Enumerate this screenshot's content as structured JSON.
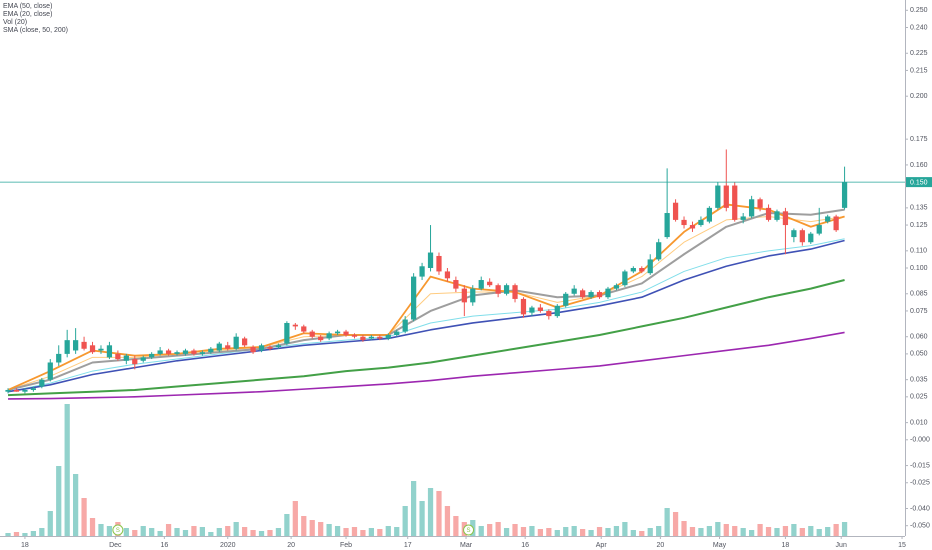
{
  "chart_data": {
    "type": "candlestick",
    "legend": [
      "EMA (50, close)",
      "EMA (20, close)",
      "Vol (20)",
      "SMA (close, 50, 200)"
    ],
    "up_color": "#26a69a",
    "down_color": "#ef5350",
    "ohlc": [
      [
        0.028,
        0.03,
        0.027,
        0.029
      ],
      [
        0.029,
        0.03,
        0.028,
        0.028
      ],
      [
        0.028,
        0.03,
        0.027,
        0.029
      ],
      [
        0.029,
        0.031,
        0.028,
        0.03
      ],
      [
        0.031,
        0.036,
        0.03,
        0.035
      ],
      [
        0.035,
        0.047,
        0.034,
        0.045
      ],
      [
        0.045,
        0.055,
        0.043,
        0.05
      ],
      [
        0.05,
        0.064,
        0.048,
        0.058
      ],
      [
        0.052,
        0.065,
        0.05,
        0.058
      ],
      [
        0.057,
        0.06,
        0.052,
        0.053
      ],
      [
        0.055,
        0.057,
        0.05,
        0.051
      ],
      [
        0.052,
        0.055,
        0.05,
        0.053
      ],
      [
        0.048,
        0.057,
        0.047,
        0.055
      ],
      [
        0.05,
        0.052,
        0.046,
        0.047
      ],
      [
        0.046,
        0.05,
        0.044,
        0.049
      ],
      [
        0.047,
        0.049,
        0.041,
        0.044
      ],
      [
        0.046,
        0.049,
        0.045,
        0.048
      ],
      [
        0.048,
        0.051,
        0.047,
        0.05
      ],
      [
        0.05,
        0.054,
        0.049,
        0.052
      ],
      [
        0.052,
        0.053,
        0.049,
        0.05
      ],
      [
        0.05,
        0.052,
        0.049,
        0.051
      ],
      [
        0.05,
        0.053,
        0.049,
        0.052
      ],
      [
        0.052,
        0.053,
        0.049,
        0.05
      ],
      [
        0.05,
        0.052,
        0.049,
        0.051
      ],
      [
        0.051,
        0.054,
        0.05,
        0.053
      ],
      [
        0.052,
        0.057,
        0.051,
        0.056
      ],
      [
        0.055,
        0.057,
        0.052,
        0.053
      ],
      [
        0.053,
        0.062,
        0.052,
        0.06
      ],
      [
        0.059,
        0.06,
        0.054,
        0.055
      ],
      [
        0.054,
        0.055,
        0.05,
        0.051
      ],
      [
        0.052,
        0.056,
        0.051,
        0.055
      ],
      [
        0.054,
        0.055,
        0.052,
        0.053
      ],
      [
        0.054,
        0.056,
        0.053,
        0.055
      ],
      [
        0.056,
        0.069,
        0.055,
        0.068
      ],
      [
        0.067,
        0.068,
        0.064,
        0.066
      ],
      [
        0.066,
        0.067,
        0.062,
        0.063
      ],
      [
        0.063,
        0.064,
        0.059,
        0.06
      ],
      [
        0.06,
        0.061,
        0.057,
        0.058
      ],
      [
        0.059,
        0.063,
        0.058,
        0.062
      ],
      [
        0.062,
        0.064,
        0.061,
        0.063
      ],
      [
        0.063,
        0.064,
        0.06,
        0.061
      ],
      [
        0.061,
        0.062,
        0.059,
        0.06
      ],
      [
        0.06,
        0.061,
        0.057,
        0.058
      ],
      [
        0.059,
        0.061,
        0.058,
        0.06
      ],
      [
        0.06,
        0.061,
        0.058,
        0.059
      ],
      [
        0.059,
        0.062,
        0.058,
        0.061
      ],
      [
        0.061,
        0.064,
        0.06,
        0.063
      ],
      [
        0.063,
        0.072,
        0.062,
        0.07
      ],
      [
        0.07,
        0.097,
        0.069,
        0.095
      ],
      [
        0.095,
        0.103,
        0.093,
        0.101
      ],
      [
        0.1,
        0.125,
        0.098,
        0.109
      ],
      [
        0.107,
        0.109,
        0.096,
        0.098
      ],
      [
        0.098,
        0.1,
        0.092,
        0.094
      ],
      [
        0.093,
        0.095,
        0.086,
        0.088
      ],
      [
        0.088,
        0.09,
        0.072,
        0.08
      ],
      [
        0.08,
        0.09,
        0.078,
        0.088
      ],
      [
        0.088,
        0.095,
        0.087,
        0.093
      ],
      [
        0.092,
        0.094,
        0.089,
        0.09
      ],
      [
        0.09,
        0.091,
        0.083,
        0.085
      ],
      [
        0.085,
        0.091,
        0.084,
        0.09
      ],
      [
        0.09,
        0.091,
        0.08,
        0.082
      ],
      [
        0.082,
        0.083,
        0.071,
        0.073
      ],
      [
        0.074,
        0.078,
        0.072,
        0.077
      ],
      [
        0.077,
        0.079,
        0.074,
        0.075
      ],
      [
        0.075,
        0.076,
        0.07,
        0.072
      ],
      [
        0.072,
        0.079,
        0.071,
        0.078
      ],
      [
        0.078,
        0.086,
        0.077,
        0.085
      ],
      [
        0.085,
        0.09,
        0.084,
        0.088
      ],
      [
        0.087,
        0.088,
        0.082,
        0.083
      ],
      [
        0.083,
        0.087,
        0.082,
        0.086
      ],
      [
        0.086,
        0.087,
        0.082,
        0.083
      ],
      [
        0.083,
        0.089,
        0.082,
        0.088
      ],
      [
        0.088,
        0.091,
        0.087,
        0.09
      ],
      [
        0.09,
        0.099,
        0.089,
        0.098
      ],
      [
        0.098,
        0.101,
        0.097,
        0.1
      ],
      [
        0.1,
        0.101,
        0.097,
        0.098
      ],
      [
        0.097,
        0.108,
        0.096,
        0.105
      ],
      [
        0.105,
        0.117,
        0.104,
        0.115
      ],
      [
        0.118,
        0.158,
        0.117,
        0.132
      ],
      [
        0.138,
        0.14,
        0.127,
        0.128
      ],
      [
        0.128,
        0.13,
        0.123,
        0.125
      ],
      [
        0.125,
        0.127,
        0.121,
        0.123
      ],
      [
        0.125,
        0.13,
        0.124,
        0.128
      ],
      [
        0.127,
        0.136,
        0.126,
        0.135
      ],
      [
        0.135,
        0.15,
        0.134,
        0.148
      ],
      [
        0.148,
        0.169,
        0.133,
        0.135
      ],
      [
        0.148,
        0.15,
        0.127,
        0.128
      ],
      [
        0.128,
        0.132,
        0.126,
        0.13
      ],
      [
        0.13,
        0.142,
        0.129,
        0.14
      ],
      [
        0.14,
        0.141,
        0.133,
        0.135
      ],
      [
        0.135,
        0.137,
        0.127,
        0.128
      ],
      [
        0.128,
        0.134,
        0.127,
        0.133
      ],
      [
        0.133,
        0.135,
        0.108,
        0.125
      ],
      [
        0.118,
        0.123,
        0.115,
        0.122
      ],
      [
        0.122,
        0.123,
        0.113,
        0.115
      ],
      [
        0.115,
        0.121,
        0.114,
        0.12
      ],
      [
        0.12,
        0.135,
        0.119,
        0.125
      ],
      [
        0.127,
        0.131,
        0.126,
        0.13
      ],
      [
        0.13,
        0.131,
        0.121,
        0.122
      ],
      [
        0.135,
        0.159,
        0.134,
        0.15
      ]
    ],
    "volume": [
      3,
      4,
      3,
      5,
      8,
      25,
      70,
      132,
      62,
      38,
      18,
      12,
      10,
      14,
      8,
      6,
      10,
      8,
      5,
      12,
      8,
      6,
      10,
      9,
      4,
      8,
      10,
      14,
      9,
      6,
      5,
      6,
      8,
      22,
      35,
      20,
      16,
      14,
      12,
      10,
      8,
      9,
      6,
      8,
      7,
      10,
      9,
      30,
      55,
      35,
      48,
      45,
      30,
      20,
      14,
      16,
      10,
      12,
      14,
      8,
      12,
      9,
      10,
      7,
      8,
      6,
      9,
      10,
      7,
      6,
      9,
      8,
      10,
      14,
      6,
      5,
      8,
      10,
      28,
      24,
      15,
      9,
      8,
      10,
      14,
      12,
      10,
      8,
      6,
      12,
      9,
      8,
      10,
      12,
      8,
      10,
      7,
      9,
      12,
      14
    ],
    "volume_lim": [
      0,
      140
    ],
    "line_x": [
      0,
      5,
      10,
      15,
      20,
      25,
      30,
      35,
      40,
      45,
      50,
      55,
      60,
      65,
      70,
      75,
      80,
      85,
      90,
      95,
      99
    ],
    "lines": [
      {
        "color": "#9c27b0",
        "width": 1.6,
        "values": [
          0.0238,
          0.024,
          0.0245,
          0.025,
          0.026,
          0.027,
          0.028,
          0.0295,
          0.031,
          0.0325,
          0.0345,
          0.037,
          0.039,
          0.041,
          0.043,
          0.046,
          0.049,
          0.052,
          0.055,
          0.059,
          0.0625
        ]
      },
      {
        "color": "#43a047",
        "width": 2,
        "values": [
          0.026,
          0.027,
          0.028,
          0.029,
          0.031,
          0.033,
          0.035,
          0.037,
          0.04,
          0.042,
          0.045,
          0.049,
          0.053,
          0.057,
          0.061,
          0.066,
          0.071,
          0.077,
          0.083,
          0.088,
          0.093
        ]
      },
      {
        "color": "#80deea",
        "width": 1,
        "values": [
          0.028,
          0.033,
          0.04,
          0.044,
          0.047,
          0.05,
          0.053,
          0.056,
          0.058,
          0.06,
          0.068,
          0.072,
          0.074,
          0.076,
          0.08,
          0.086,
          0.098,
          0.106,
          0.11,
          0.113,
          0.117
        ]
      },
      {
        "color": "#3f51b5",
        "width": 1.6,
        "values": [
          0.028,
          0.032,
          0.038,
          0.042,
          0.046,
          0.049,
          0.052,
          0.055,
          0.057,
          0.059,
          0.064,
          0.068,
          0.071,
          0.074,
          0.078,
          0.083,
          0.093,
          0.101,
          0.107,
          0.111,
          0.116
        ]
      },
      {
        "color": "#ffcc80",
        "width": 1,
        "values": [
          0.029,
          0.037,
          0.048,
          0.048,
          0.05,
          0.052,
          0.054,
          0.06,
          0.061,
          0.061,
          0.085,
          0.086,
          0.086,
          0.08,
          0.084,
          0.095,
          0.115,
          0.128,
          0.13,
          0.127,
          0.13
        ]
      },
      {
        "color": "#9e9e9e",
        "width": 2,
        "values": [
          0.029,
          0.035,
          0.045,
          0.047,
          0.049,
          0.051,
          0.053,
          0.058,
          0.061,
          0.061,
          0.075,
          0.084,
          0.087,
          0.083,
          0.084,
          0.091,
          0.108,
          0.124,
          0.132,
          0.131,
          0.134
        ]
      },
      {
        "color": "#f7982f",
        "width": 1.8,
        "values": [
          0.029,
          0.04,
          0.052,
          0.049,
          0.05,
          0.053,
          0.054,
          0.062,
          0.061,
          0.061,
          0.095,
          0.088,
          0.086,
          0.077,
          0.084,
          0.098,
          0.121,
          0.137,
          0.134,
          0.124,
          0.13
        ]
      }
    ],
    "markers": [
      {
        "x": 13,
        "text": "S"
      },
      {
        "x": 54.5,
        "text": "S"
      }
    ],
    "last_price": {
      "value": 0.15,
      "label": "0.150"
    },
    "xlim": [
      -0.95,
      106.15
    ],
    "xticks": [
      {
        "value": 2,
        "label": "18"
      },
      {
        "value": 12.7,
        "label": "Dec"
      },
      {
        "value": 18.5,
        "label": "16"
      },
      {
        "value": 26,
        "label": "2020"
      },
      {
        "value": 33.5,
        "label": "20"
      },
      {
        "value": 40,
        "label": "Feb"
      },
      {
        "value": 47.3,
        "label": "17"
      },
      {
        "value": 54.2,
        "label": "Mar"
      },
      {
        "value": 61.2,
        "label": "16"
      },
      {
        "value": 70.2,
        "label": "Apr"
      },
      {
        "value": 77.2,
        "label": "20"
      },
      {
        "value": 84.2,
        "label": "May"
      },
      {
        "value": 92,
        "label": "18"
      },
      {
        "value": 98.6,
        "label": "Jun"
      },
      {
        "value": 105.8,
        "label": "15"
      }
    ],
    "ylim": [
      -0.056,
      0.256
    ],
    "yticks": [
      {
        "value": 0.25,
        "label": "0.250"
      },
      {
        "value": 0.24,
        "label": "0.240"
      },
      {
        "value": 0.225,
        "label": "0.225"
      },
      {
        "value": 0.215,
        "label": "0.215"
      },
      {
        "value": 0.2,
        "label": "0.200"
      },
      {
        "value": 0.175,
        "label": "0.175"
      },
      {
        "value": 0.16,
        "label": "0.160"
      },
      {
        "value": 0.135,
        "label": "0.135"
      },
      {
        "value": 0.125,
        "label": "0.125"
      },
      {
        "value": 0.11,
        "label": "0.110"
      },
      {
        "value": 0.1,
        "label": "0.100"
      },
      {
        "value": 0.085,
        "label": "0.085"
      },
      {
        "value": 0.075,
        "label": "0.075"
      },
      {
        "value": 0.06,
        "label": "0.060"
      },
      {
        "value": 0.05,
        "label": "0.050"
      },
      {
        "value": 0.035,
        "label": "0.035"
      },
      {
        "value": 0.025,
        "label": "0.025"
      },
      {
        "value": 0.01,
        "label": "0.010"
      },
      {
        "value": 0,
        "label": "-0.000"
      },
      {
        "value": -0.015,
        "label": "-0.015"
      },
      {
        "value": -0.025,
        "label": "-0.025"
      },
      {
        "value": -0.04,
        "label": "-0.040"
      },
      {
        "value": -0.05,
        "label": "-0.050"
      }
    ]
  }
}
